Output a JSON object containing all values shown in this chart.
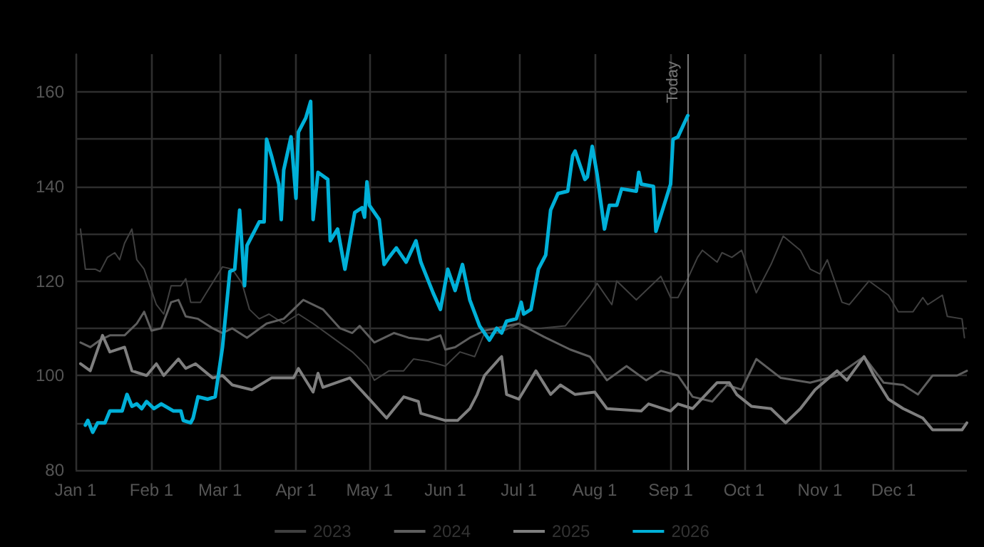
{
  "chart_data": {
    "type": "line",
    "xlim": [
      "--01-01",
      "--12-31"
    ],
    "ylim": [
      80,
      168
    ],
    "xticks": [
      {
        "value": "--01-01",
        "label": "Jan 1"
      },
      {
        "value": "--02-01",
        "label": "Feb 1"
      },
      {
        "value": "--03-01",
        "label": "Mar 1"
      },
      {
        "value": "--04-01",
        "label": "Apr 1"
      },
      {
        "value": "--05-01",
        "label": "May 1"
      },
      {
        "value": "--06-01",
        "label": "Jun 1"
      },
      {
        "value": "--07-01",
        "label": "Jul 1"
      },
      {
        "value": "--08-01",
        "label": "Aug 1"
      },
      {
        "value": "--09-01",
        "label": "Sep 1"
      },
      {
        "value": "--10-01",
        "label": "Oct 1"
      },
      {
        "value": "--11-01",
        "label": "Nov 1"
      },
      {
        "value": "--12-01",
        "label": "Dec 1"
      }
    ],
    "yticks": [
      80,
      {
        "value": 90,
        "label": null
      },
      100,
      {
        "value": 110,
        "label": null
      },
      120,
      {
        "value": 130,
        "label": null
      },
      140,
      {
        "value": 150,
        "label": null
      },
      160
    ],
    "grid": true,
    "legend": "bottom",
    "marker": "none",
    "line_style": "solid",
    "ref_lines": [
      {
        "axis": "x",
        "value": "--09-08",
        "label": "Today",
        "color": "#777777"
      }
    ],
    "series": [
      {
        "name": "2023",
        "color": "#404040",
        "x": [
          "--01-03",
          "--01-05",
          "--01-09",
          "--01-11",
          "--01-14",
          "--01-17",
          "--01-19",
          "--01-21",
          "--01-24",
          "--01-26",
          "--01-29",
          "--02-01",
          "--02-03",
          "--02-06",
          "--02-09",
          "--02-13",
          "--02-15",
          "--02-17",
          "--02-21",
          "--02-24",
          "--03-02",
          "--03-06",
          "--03-10",
          "--03-13",
          "--03-17",
          "--03-21",
          "--03-27",
          "--04-02",
          "--04-08",
          "--04-16",
          "--04-24",
          "--04-30",
          "--05-03",
          "--05-09",
          "--05-15",
          "--05-19",
          "--05-25",
          "--06-01",
          "--06-07",
          "--06-13",
          "--06-17",
          "--06-23",
          "--07-01",
          "--07-06",
          "--07-10",
          "--07-20",
          "--07-30",
          "--08-02",
          "--08-08",
          "--08-10",
          "--08-18",
          "--08-22",
          "--08-28",
          "--09-01",
          "--09-04",
          "--09-08",
          "--09-12",
          "--09-14",
          "--09-20",
          "--09-22",
          "--09-26",
          "--09-30",
          "--10-06",
          "--10-12",
          "--10-17",
          "--10-24",
          "--10-28",
          "--11-01",
          "--11-04",
          "--11-10",
          "--11-13",
          "--11-21",
          "--11-29",
          "--12-03",
          "--12-09",
          "--12-13",
          "--12-15",
          "--12-21",
          "--12-23",
          "--12-29",
          "--12-30"
        ],
        "values": [
          131,
          122.5,
          122.5,
          122,
          125,
          126,
          124.5,
          128,
          131,
          124.5,
          122.5,
          118,
          115,
          113,
          119,
          119,
          120.5,
          115.5,
          115.5,
          118,
          123,
          122.5,
          119.5,
          114,
          112,
          113,
          111,
          113,
          111,
          108,
          105,
          102,
          99,
          101,
          101,
          103.5,
          103,
          102,
          105,
          104,
          109,
          109,
          111,
          110,
          110,
          110.5,
          117,
          119.5,
          115,
          120,
          116,
          118,
          121,
          116.5,
          116.5,
          120.5,
          125,
          126.5,
          124,
          126,
          125,
          126.5,
          117.5,
          123.5,
          129.5,
          126.5,
          122.5,
          121.5,
          124.5,
          115.5,
          115,
          120,
          117,
          113.5,
          113.5,
          116.5,
          115,
          117,
          112.5,
          112,
          108
        ]
      },
      {
        "name": "2024",
        "color": "#5e5e5e",
        "x": [
          "--01-03",
          "--01-07",
          "--01-11",
          "--01-15",
          "--01-21",
          "--01-26",
          "--01-29",
          "--02-01",
          "--02-05",
          "--02-09",
          "--02-12",
          "--02-15",
          "--02-20",
          "--02-26",
          "--03-02",
          "--03-06",
          "--03-12",
          "--03-20",
          "--03-27",
          "--04-04",
          "--04-12",
          "--04-19",
          "--04-24",
          "--04-27",
          "--05-03",
          "--05-11",
          "--05-17",
          "--05-25",
          "--05-30",
          "--06-01",
          "--06-05",
          "--06-11",
          "--06-17",
          "--07-01",
          "--07-12",
          "--07-22",
          "--07-30",
          "--08-06",
          "--08-14",
          "--08-22",
          "--08-28",
          "--09-04",
          "--09-10",
          "--09-18",
          "--09-24",
          "--09-30",
          "--10-06",
          "--10-16",
          "--10-28",
          "--11-08",
          "--11-19",
          "--11-27",
          "--12-05",
          "--12-11",
          "--12-17",
          "--12-27",
          "--12-31"
        ],
        "values": [
          107,
          106,
          107.5,
          108.5,
          108.5,
          111,
          113.5,
          109.5,
          110,
          115.5,
          116,
          112.5,
          112,
          110,
          109,
          110,
          108,
          111,
          112,
          116,
          114,
          110,
          109,
          110.5,
          107,
          109,
          108,
          107.5,
          108.5,
          105.5,
          106,
          108,
          109.5,
          111,
          108,
          105.5,
          104,
          99,
          102,
          99,
          101,
          100,
          95.5,
          94.5,
          98,
          97,
          103.5,
          99.5,
          98.5,
          100,
          104,
          98.5,
          98,
          96,
          100,
          100,
          101
        ]
      },
      {
        "name": "2025",
        "color": "#7f7f7f",
        "x": [
          "--01-03",
          "--01-07",
          "--01-12",
          "--01-15",
          "--01-21",
          "--01-24",
          "--01-30",
          "--02-03",
          "--02-06",
          "--02-12",
          "--02-15",
          "--02-19",
          "--02-26",
          "--03-02",
          "--03-06",
          "--03-14",
          "--03-22",
          "--03-31",
          "--04-02",
          "--04-08",
          "--04-10",
          "--04-12",
          "--04-23",
          "--05-01",
          "--05-08",
          "--05-15",
          "--05-21",
          "--05-22",
          "--06-01",
          "--06-06",
          "--06-11",
          "--06-14",
          "--06-17",
          "--06-23",
          "--06-24",
          "--06-26",
          "--07-01",
          "--07-08",
          "--07-14",
          "--07-18",
          "--07-24",
          "--08-01",
          "--08-06",
          "--08-20",
          "--08-23",
          "--09-01",
          "--09-04",
          "--09-10",
          "--09-20",
          "--09-25",
          "--09-28",
          "--10-04",
          "--10-12",
          "--10-18",
          "--10-24",
          "--10-30",
          "--11-08",
          "--11-12",
          "--11-19",
          "--11-23",
          "--11-29",
          "--12-05",
          "--12-13",
          "--12-17",
          "--12-29",
          "--12-31"
        ],
        "values": [
          102.5,
          101,
          108.5,
          105,
          106,
          101,
          100,
          102.5,
          100,
          103.5,
          101.5,
          102.5,
          99.5,
          100,
          98,
          97,
          99.5,
          99.5,
          101.5,
          96.5,
          100.5,
          97.5,
          99.5,
          95,
          91,
          95.5,
          94.5,
          92,
          90.5,
          90.5,
          93,
          96,
          100,
          103.5,
          104,
          96,
          95,
          101,
          96,
          98,
          96,
          96.5,
          93,
          92.5,
          94,
          92.5,
          94,
          93,
          98.5,
          98.5,
          96,
          93.5,
          93,
          90,
          93,
          97,
          101,
          99,
          104,
          100,
          95,
          93,
          91,
          88.5,
          88.5,
          90
        ]
      },
      {
        "name": "2026",
        "color": "#00b0d8",
        "x": [
          "--01-05",
          "--01-06",
          "--01-08",
          "--01-10",
          "--01-13",
          "--01-15",
          "--01-20",
          "--01-22",
          "--01-24",
          "--01-26",
          "--01-28",
          "--01-30",
          "--02-02",
          "--02-05",
          "--02-10",
          "--02-13",
          "--02-14",
          "--02-17",
          "--02-18",
          "--02-20",
          "--02-24",
          "--02-27",
          "--03-02",
          "--03-05",
          "--03-07",
          "--03-09",
          "--03-11",
          "--03-12",
          "--03-17",
          "--03-19",
          "--03-20",
          "--03-22",
          "--03-25",
          "--03-26",
          "--03-27",
          "--03-30",
          "--04-01",
          "--04-02",
          "--04-05",
          "--04-07",
          "--04-08",
          "--04-10",
          "--04-14",
          "--04-15",
          "--04-18",
          "--04-21",
          "--04-25",
          "--04-28",
          "--04-29",
          "--04-30",
          "--05-01",
          "--05-05",
          "--05-07",
          "--05-09",
          "--05-12",
          "--05-14",
          "--05-16",
          "--05-20",
          "--05-22",
          "--05-27",
          "--05-30",
          "--06-02",
          "--06-05",
          "--06-08",
          "--06-11",
          "--06-15",
          "--06-19",
          "--06-22",
          "--06-24",
          "--06-26",
          "--06-30",
          "--07-02",
          "--07-03",
          "--07-06",
          "--07-09",
          "--07-12",
          "--07-14",
          "--07-17",
          "--07-21",
          "--07-23",
          "--07-24",
          "--07-28",
          "--07-29",
          "--07-31",
          "--08-02",
          "--08-05",
          "--08-07",
          "--08-10",
          "--08-12",
          "--08-18",
          "--08-19",
          "--08-20",
          "--08-25",
          "--08-26",
          "--09-01",
          "--09-02",
          "--09-04",
          "--09-08"
        ],
        "values": [
          89.5,
          90.5,
          88,
          90,
          90,
          92.5,
          92.5,
          96,
          93.5,
          94,
          93,
          94.5,
          93,
          94,
          92.5,
          92.5,
          90.5,
          90,
          91,
          95.5,
          95,
          95.5,
          106,
          122,
          122.5,
          135,
          119,
          127.5,
          132.5,
          132.5,
          150,
          146.5,
          140.5,
          133,
          143.5,
          150.5,
          137.5,
          151.5,
          154.5,
          158,
          133,
          143,
          141.5,
          128.5,
          131,
          122.5,
          134.5,
          135.5,
          133.5,
          141,
          136,
          133,
          123.5,
          125,
          127,
          125.5,
          124,
          128.5,
          124,
          117.5,
          114,
          122.5,
          118,
          123.5,
          116,
          110.5,
          107.5,
          110,
          109,
          111.5,
          112,
          115.5,
          113,
          114,
          122.5,
          125.5,
          135,
          138.5,
          139,
          146.5,
          147.5,
          141.5,
          142,
          148.5,
          142.5,
          131,
          136,
          136,
          139.5,
          139,
          143,
          140.5,
          140,
          130.5,
          140.5,
          150,
          150.5,
          155
        ]
      }
    ]
  }
}
